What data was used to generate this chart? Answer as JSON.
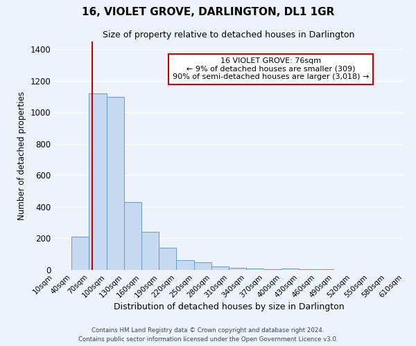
{
  "title": "16, VIOLET GROVE, DARLINGTON, DL1 1GR",
  "subtitle": "Size of property relative to detached houses in Darlington",
  "xlabel": "Distribution of detached houses by size in Darlington",
  "ylabel": "Number of detached properties",
  "bar_color": "#c5d9f0",
  "bar_edge_color": "#6699cc",
  "background_color": "#eef2fa",
  "grid_color": "#ffffff",
  "vline_value": 76,
  "vline_color": "#cc0000",
  "annotation_title": "16 VIOLET GROVE: 76sqm",
  "annotation_line1": "← 9% of detached houses are smaller (309)",
  "annotation_line2": "90% of semi-detached houses are larger (3,018) →",
  "annotation_box_color": "#ffffff",
  "annotation_box_edgecolor": "#cc0000",
  "bin_edges": [
    10,
    40,
    70,
    100,
    130,
    160,
    190,
    220,
    250,
    280,
    310,
    340,
    370,
    400,
    430,
    460,
    490,
    520,
    550,
    580,
    610
  ],
  "bin_counts": [
    0,
    210,
    1120,
    1100,
    430,
    240,
    140,
    60,
    50,
    20,
    15,
    10,
    5,
    10,
    5,
    5,
    0,
    0,
    0,
    0
  ],
  "ylim": [
    0,
    1450
  ],
  "yticks": [
    0,
    200,
    400,
    600,
    800,
    1000,
    1200,
    1400
  ],
  "footer_line1": "Contains HM Land Registry data © Crown copyright and database right 2024.",
  "footer_line2": "Contains public sector information licensed under the Open Government Licence v3.0."
}
